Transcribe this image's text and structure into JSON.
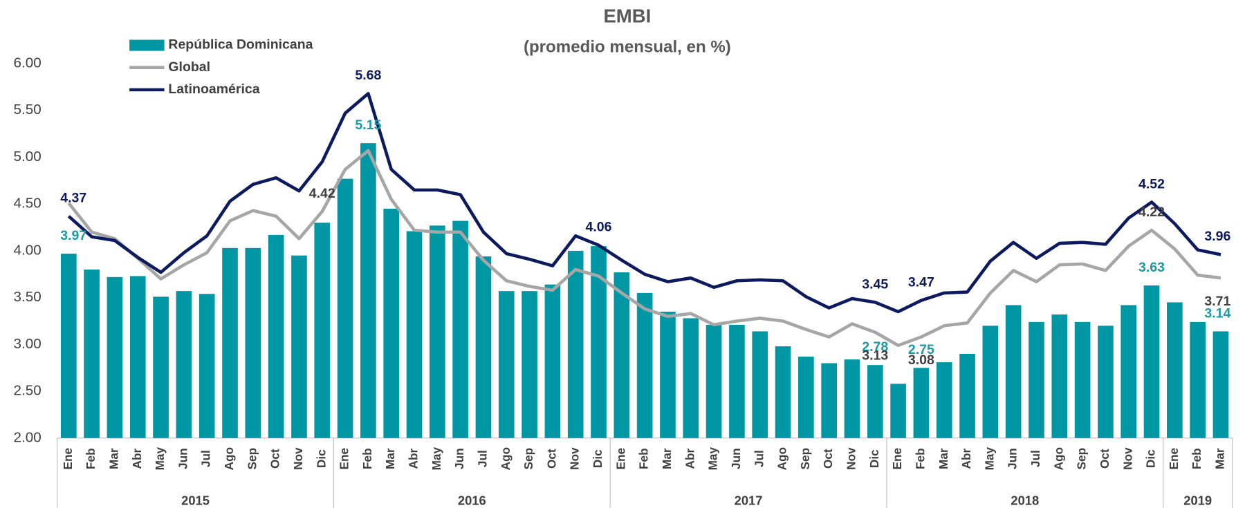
{
  "chart_data": {
    "type": "bar_line",
    "title": "EMBI",
    "subtitle": "(promedio mensual, en %)",
    "categories": [
      "Ene",
      "Feb",
      "Mar",
      "Abr",
      "May",
      "Jun",
      "Jul",
      "Ago",
      "Sep",
      "Oct",
      "Nov",
      "Dic",
      "Ene",
      "Feb",
      "Mar",
      "Abr",
      "May",
      "Jun",
      "Jul",
      "Ago",
      "Sep",
      "Oct",
      "Nov",
      "Dic",
      "Ene",
      "Feb",
      "Mar",
      "Abr",
      "May",
      "Jun",
      "Jul",
      "Ago",
      "Sep",
      "Oct",
      "Nov",
      "Dic",
      "Ene",
      "Feb",
      "Mar",
      "Abr",
      "May",
      "Jun",
      "Jul",
      "Ago",
      "Sep",
      "Oct",
      "Nov",
      "Dic",
      "Ene",
      "Feb",
      "Mar"
    ],
    "groups": [
      {
        "label": "2015",
        "count": 12
      },
      {
        "label": "2016",
        "count": 12
      },
      {
        "label": "2017",
        "count": 12
      },
      {
        "label": "2018",
        "count": 12
      },
      {
        "label": "2019",
        "count": 3
      }
    ],
    "ylim": [
      2,
      6
    ],
    "yticks": [
      {
        "value": 2,
        "label": "2.00"
      },
      {
        "value": 2.5,
        "label": "2.50"
      },
      {
        "value": 3,
        "label": "3.00"
      },
      {
        "value": 3.5,
        "label": "3.50"
      },
      {
        "value": 4,
        "label": "4.00"
      },
      {
        "value": 4.5,
        "label": "4.50"
      },
      {
        "value": 5,
        "label": "5.00"
      },
      {
        "value": 5.5,
        "label": "5.50"
      },
      {
        "value": 6,
        "label": "6.00"
      }
    ],
    "grid": false,
    "legend": "top-left",
    "series": [
      {
        "name": "República Dominicana",
        "kind": "bar",
        "color": "#0097a4",
        "label_color": "#1a9aa6",
        "values": [
          3.97,
          3.8,
          3.72,
          3.73,
          3.51,
          3.57,
          3.54,
          4.03,
          4.03,
          4.17,
          3.95,
          4.3,
          4.77,
          5.15,
          4.45,
          4.21,
          4.27,
          4.32,
          3.94,
          3.57,
          3.57,
          3.64,
          4.0,
          4.05,
          3.77,
          3.55,
          3.35,
          3.28,
          3.21,
          3.21,
          3.14,
          2.98,
          2.87,
          2.8,
          2.84,
          2.78,
          2.58,
          2.75,
          2.81,
          2.9,
          3.2,
          3.42,
          3.24,
          3.32,
          3.24,
          3.2,
          3.42,
          3.63,
          3.45,
          3.24,
          3.14
        ],
        "value_labels": [
          "3.97",
          null,
          null,
          null,
          null,
          null,
          null,
          null,
          null,
          null,
          null,
          null,
          null,
          "5.15",
          null,
          null,
          null,
          null,
          null,
          null,
          null,
          null,
          null,
          null,
          null,
          null,
          null,
          null,
          null,
          null,
          null,
          null,
          null,
          null,
          null,
          "2.78",
          null,
          "2.75",
          null,
          null,
          null,
          null,
          null,
          null,
          null,
          null,
          null,
          "3.63",
          null,
          null,
          "3.14"
        ]
      },
      {
        "name": "Global",
        "kind": "line",
        "color": "#a6a6a6",
        "label_color": "#404040",
        "values": [
          4.51,
          4.2,
          4.13,
          3.92,
          3.7,
          3.85,
          3.98,
          4.32,
          4.43,
          4.37,
          4.13,
          4.42,
          4.87,
          5.07,
          4.55,
          4.22,
          4.2,
          4.2,
          3.9,
          3.68,
          3.62,
          3.58,
          3.8,
          3.73,
          3.55,
          3.38,
          3.3,
          3.33,
          3.21,
          3.25,
          3.28,
          3.25,
          3.16,
          3.08,
          3.22,
          3.13,
          2.99,
          3.08,
          3.2,
          3.23,
          3.55,
          3.79,
          3.67,
          3.85,
          3.86,
          3.79,
          4.05,
          4.22,
          4.02,
          3.74,
          3.71
        ],
        "value_labels": [
          null,
          null,
          null,
          null,
          null,
          null,
          null,
          null,
          null,
          null,
          null,
          "4.42",
          null,
          null,
          null,
          null,
          null,
          null,
          null,
          null,
          null,
          null,
          null,
          null,
          null,
          null,
          null,
          null,
          null,
          null,
          null,
          null,
          null,
          null,
          null,
          "3.13",
          null,
          "3.08",
          null,
          null,
          null,
          null,
          null,
          null,
          null,
          null,
          null,
          "4.22",
          null,
          null,
          "3.71"
        ]
      },
      {
        "name": "Latinoamérica",
        "kind": "line",
        "color": "#0d1b5e",
        "label_color": "#0d1b5e",
        "values": [
          4.37,
          4.15,
          4.11,
          3.93,
          3.77,
          3.98,
          4.16,
          4.53,
          4.71,
          4.78,
          4.64,
          4.95,
          5.47,
          5.68,
          4.87,
          4.65,
          4.65,
          4.6,
          4.2,
          3.97,
          3.91,
          3.84,
          4.16,
          4.06,
          3.9,
          3.75,
          3.67,
          3.71,
          3.61,
          3.68,
          3.69,
          3.68,
          3.51,
          3.39,
          3.49,
          3.45,
          3.35,
          3.47,
          3.55,
          3.56,
          3.89,
          4.09,
          3.92,
          4.08,
          4.09,
          4.07,
          4.35,
          4.52,
          4.29,
          4.01,
          3.96
        ],
        "value_labels": [
          "4.37",
          null,
          null,
          null,
          null,
          null,
          null,
          null,
          null,
          null,
          null,
          null,
          null,
          "5.68",
          null,
          null,
          null,
          null,
          null,
          null,
          null,
          null,
          null,
          "4.06",
          null,
          null,
          null,
          null,
          null,
          null,
          null,
          null,
          null,
          null,
          null,
          "3.45",
          null,
          "3.47",
          null,
          null,
          null,
          null,
          null,
          null,
          null,
          null,
          null,
          "4.52",
          null,
          null,
          "3.96"
        ]
      }
    ]
  }
}
